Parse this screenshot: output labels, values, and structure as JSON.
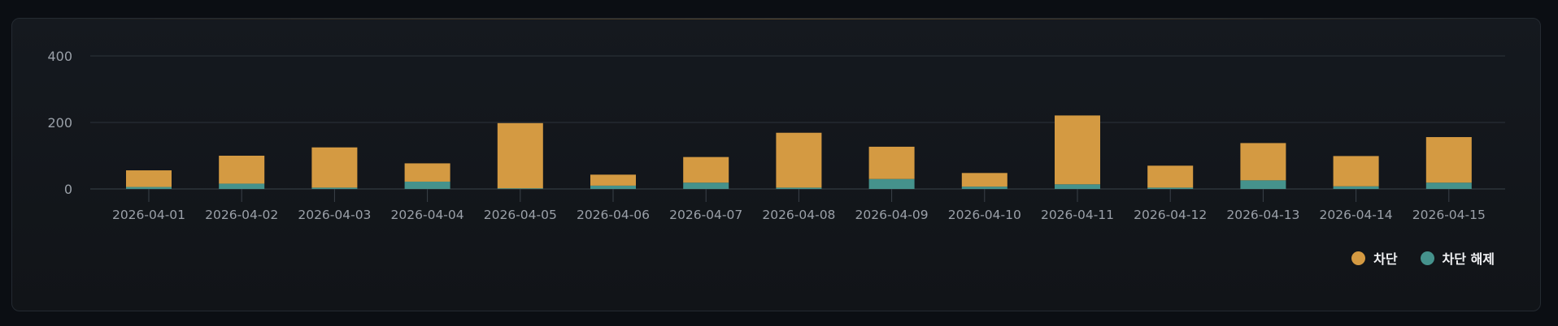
{
  "colors": {
    "block": "#d49a42",
    "unblock": "#45928c",
    "grid": "#2c333a",
    "tick_text": "#9aa0a8"
  },
  "chart_data": {
    "type": "bar",
    "stacked": true,
    "categories": [
      "2026-04-01",
      "2026-04-02",
      "2026-04-03",
      "2026-04-04",
      "2026-04-05",
      "2026-04-06",
      "2026-04-07",
      "2026-04-08",
      "2026-04-09",
      "2026-04-10",
      "2026-04-11",
      "2026-04-12",
      "2026-04-13",
      "2026-04-14",
      "2026-04-15"
    ],
    "series": [
      {
        "name": "차단 해제",
        "color": "#45928c",
        "values": [
          6,
          16,
          4,
          22,
          2,
          10,
          19,
          4,
          30,
          7,
          14,
          4,
          26,
          8,
          19
        ]
      },
      {
        "name": "차단",
        "color": "#d49a42",
        "values": [
          50,
          84,
          121,
          55,
          196,
          33,
          77,
          165,
          97,
          41,
          207,
          66,
          112,
          91,
          137
        ]
      }
    ],
    "yticks": [
      0,
      200,
      400
    ],
    "ylim": [
      0,
      400
    ],
    "grid": true,
    "legend_position": "bottom-right"
  },
  "legend": [
    {
      "label": "차단",
      "color": "#d49a42"
    },
    {
      "label": "차단 해제",
      "color": "#45928c"
    }
  ]
}
